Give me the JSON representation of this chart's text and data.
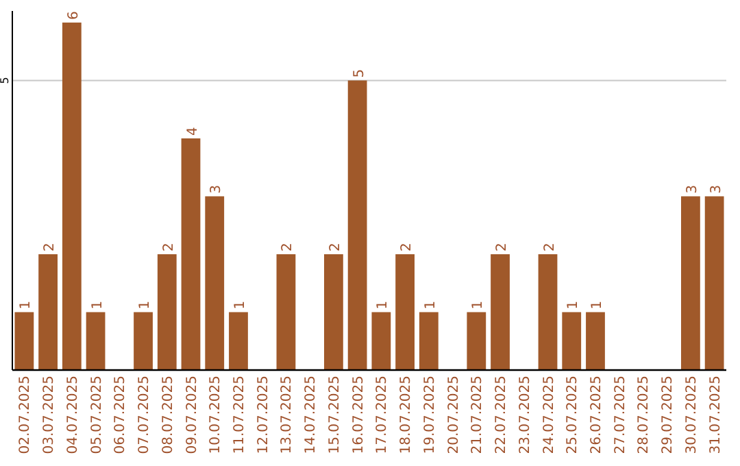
{
  "chart_data": {
    "type": "bar",
    "categories": [
      "02.07.2025",
      "03.07.2025",
      "04.07.2025",
      "05.07.2025",
      "06.07.2025",
      "07.07.2025",
      "08.07.2025",
      "09.07.2025",
      "10.07.2025",
      "11.07.2025",
      "12.07.2025",
      "13.07.2025",
      "14.07.2025",
      "15.07.2025",
      "16.07.2025",
      "17.07.2025",
      "18.07.2025",
      "19.07.2025",
      "20.07.2025",
      "21.07.2025",
      "22.07.2025",
      "23.07.2025",
      "24.07.2025",
      "25.07.2025",
      "26.07.2025",
      "27.07.2025",
      "28.07.2025",
      "29.07.2025",
      "30.07.2025",
      "31.07.2025"
    ],
    "values": [
      1,
      2,
      6,
      1,
      0,
      1,
      2,
      4,
      3,
      1,
      0,
      2,
      0,
      2,
      5,
      1,
      2,
      1,
      0,
      1,
      2,
      0,
      2,
      1,
      1,
      0,
      0,
      0,
      3,
      3
    ],
    "value_labels": [
      "1",
      "2",
      "6",
      "1",
      null,
      "1",
      "2",
      "4",
      "3",
      "1",
      null,
      "2",
      null,
      "2",
      "5",
      "1",
      "2",
      "1",
      null,
      "1",
      "2",
      null,
      "2",
      "1",
      "1",
      null,
      null,
      null,
      "3",
      "3"
    ],
    "color": "#a0592a",
    "ylim": [
      0,
      6.2
    ],
    "yticks": [
      5
    ],
    "grid": "y"
  }
}
